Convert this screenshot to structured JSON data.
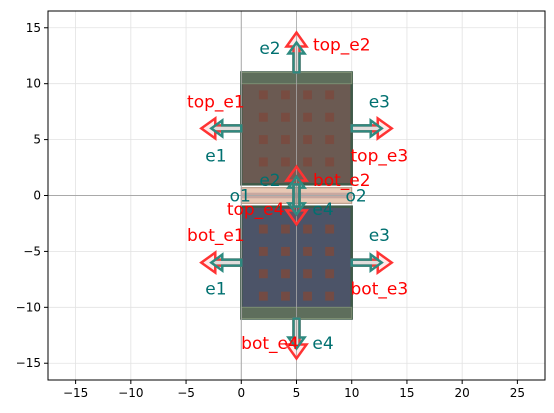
{
  "chart_data": {
    "type": "scatter",
    "title": "",
    "xlabel": "",
    "ylabel": "",
    "xlim": [
      -17.5,
      27.5
    ],
    "ylim": [
      -16.5,
      16.5
    ],
    "xticks": [
      -15,
      -10,
      -5,
      0,
      5,
      10,
      15,
      20,
      25
    ],
    "yticks": [
      -15,
      -10,
      -5,
      0,
      5,
      10,
      15
    ],
    "grid": true,
    "colors": {
      "outer_label": "#ff0000",
      "inner_label": "#007070",
      "outer_arrow": "#ff3333",
      "inner_arrow": "#2e8a80",
      "top_body": "#6b5a52",
      "bot_body": "#4c5468",
      "bar": "#5e6e5c",
      "via": "#7a4a3e",
      "strip": "#e8c8b4"
    },
    "rects": [
      {
        "name": "top-body",
        "x0": 0,
        "x1": 10,
        "y0": 1,
        "y1": 11
      },
      {
        "name": "bot-body",
        "x0": 0,
        "x1": 10,
        "y0": -11,
        "y1": -1
      },
      {
        "name": "center-strip",
        "x0": 0,
        "x1": 10,
        "y0": -0.7,
        "y1": 0.7
      }
    ],
    "ports": [
      {
        "name": "top_e1",
        "x": 0,
        "y": 6,
        "dir": "left",
        "group": "outer"
      },
      {
        "name": "top_e2",
        "x": 5,
        "y": 11,
        "dir": "up",
        "group": "outer"
      },
      {
        "name": "top_e3",
        "x": 10,
        "y": 6,
        "dir": "right",
        "group": "outer"
      },
      {
        "name": "top_e4",
        "x": 5,
        "y": 1,
        "dir": "down",
        "group": "outer"
      },
      {
        "name": "bot_e1",
        "x": 0,
        "y": -6,
        "dir": "left",
        "group": "outer"
      },
      {
        "name": "bot_e2",
        "x": 5,
        "y": -1,
        "dir": "up",
        "group": "outer"
      },
      {
        "name": "bot_e3",
        "x": 10,
        "y": -6,
        "dir": "right",
        "group": "outer"
      },
      {
        "name": "bot_e4",
        "x": 5,
        "y": -11,
        "dir": "down",
        "group": "outer"
      },
      {
        "name": "e1",
        "x": 0,
        "y": 6,
        "dir": "left",
        "group": "inner"
      },
      {
        "name": "e2",
        "x": 5,
        "y": 11,
        "dir": "up",
        "group": "inner"
      },
      {
        "name": "e3",
        "x": 10,
        "y": 6,
        "dir": "right",
        "group": "inner"
      },
      {
        "name": "e4",
        "x": 5,
        "y": 1,
        "dir": "down",
        "group": "inner"
      },
      {
        "name": "e1",
        "x": 0,
        "y": -6,
        "dir": "left",
        "group": "inner"
      },
      {
        "name": "e2",
        "x": 5,
        "y": -1,
        "dir": "up",
        "group": "inner"
      },
      {
        "name": "e3",
        "x": 10,
        "y": -6,
        "dir": "right",
        "group": "inner"
      },
      {
        "name": "e4",
        "x": 5,
        "y": -11,
        "dir": "down",
        "group": "inner"
      }
    ],
    "annotations": [
      {
        "text": "top_e2",
        "x": 9.1,
        "y": 13.4,
        "color": "outer_label"
      },
      {
        "text": "e2",
        "x": 2.6,
        "y": 13.1,
        "color": "inner_label"
      },
      {
        "text": "top_e1",
        "x": -2.3,
        "y": 8.3,
        "color": "outer_label"
      },
      {
        "text": "e3",
        "x": 12.5,
        "y": 8.3,
        "color": "inner_label"
      },
      {
        "text": "e1",
        "x": -2.3,
        "y": 3.5,
        "color": "inner_label"
      },
      {
        "text": "top_e3",
        "x": 12.5,
        "y": 3.5,
        "color": "outer_label"
      },
      {
        "text": "e2",
        "x": 2.6,
        "y": 1.3,
        "color": "inner_label"
      },
      {
        "text": "bot_e2",
        "x": 9.1,
        "y": 1.3,
        "color": "outer_label"
      },
      {
        "text": "o1",
        "x": -0.1,
        "y": -0.1,
        "color": "inner_label"
      },
      {
        "text": "o2",
        "x": 10.4,
        "y": -0.1,
        "color": "inner_label"
      },
      {
        "text": "top_e4",
        "x": 1.3,
        "y": -1.3,
        "color": "outer_label"
      },
      {
        "text": "e4",
        "x": 7.4,
        "y": -1.3,
        "color": "inner_label"
      },
      {
        "text": "bot_e1",
        "x": -2.3,
        "y": -3.6,
        "color": "outer_label"
      },
      {
        "text": "e3",
        "x": 12.5,
        "y": -3.6,
        "color": "inner_label"
      },
      {
        "text": "e1",
        "x": -2.3,
        "y": -8.4,
        "color": "inner_label"
      },
      {
        "text": "bot_e3",
        "x": 12.5,
        "y": -8.4,
        "color": "outer_label"
      },
      {
        "text": "bot_e4",
        "x": 2.6,
        "y": -13.3,
        "color": "outer_label"
      },
      {
        "text": "e4",
        "x": 7.4,
        "y": -13.3,
        "color": "inner_label"
      }
    ]
  }
}
